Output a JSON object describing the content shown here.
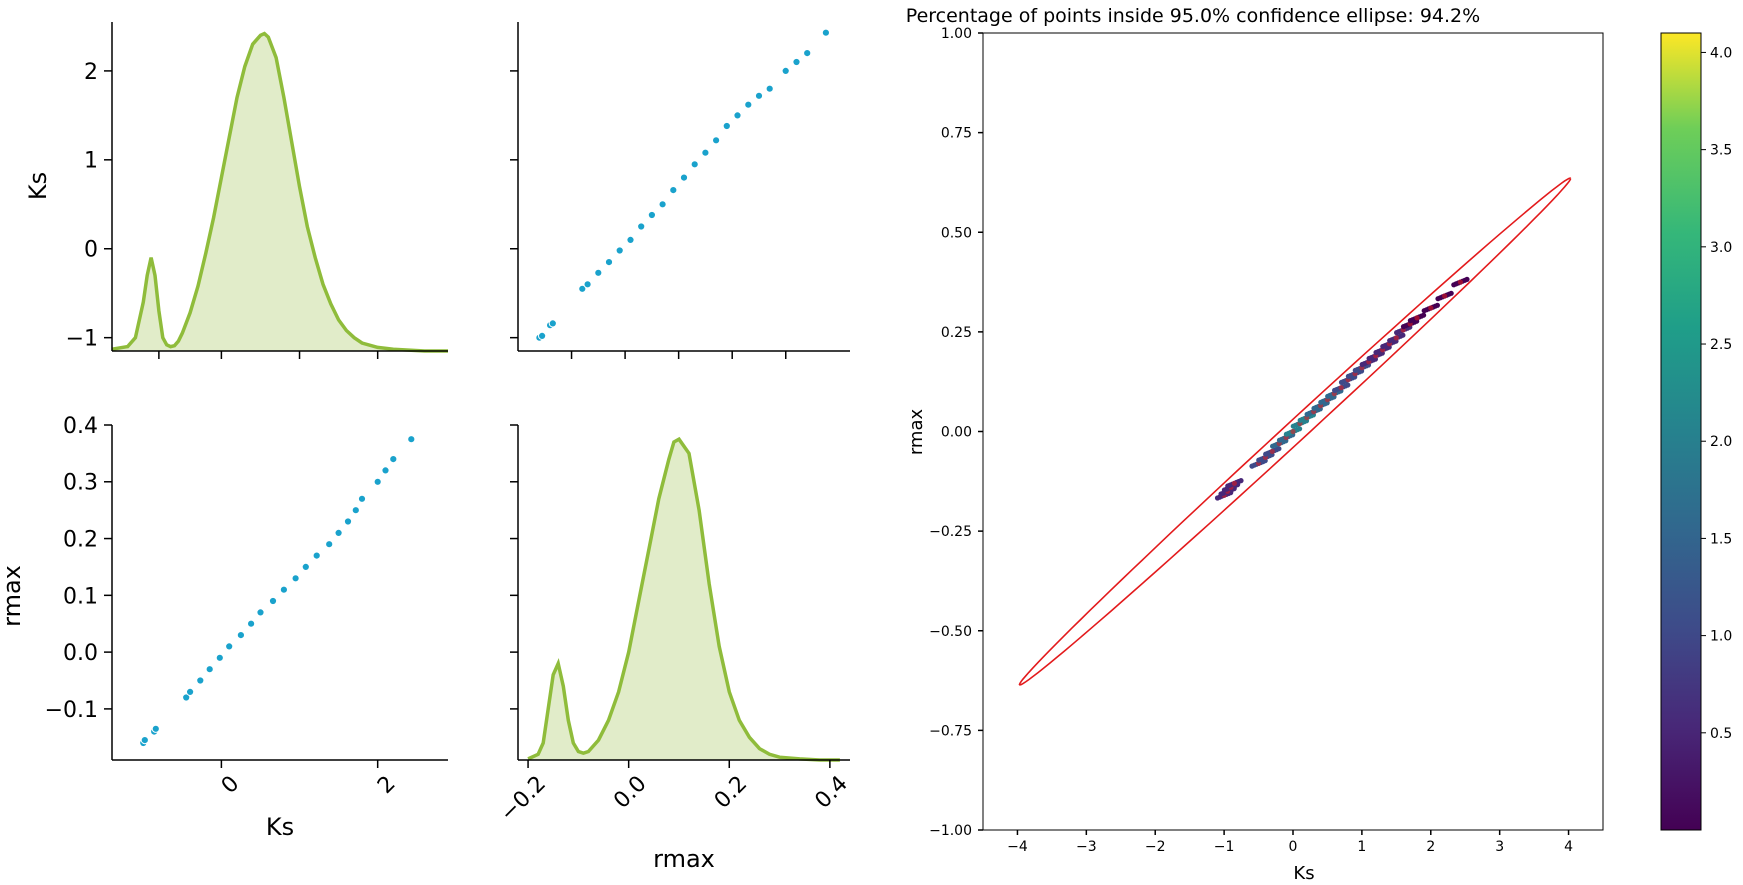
{
  "chart_data": [
    {
      "id": "kde_ks",
      "type": "area",
      "ylabel": "Ks",
      "yticks": [
        -1,
        0,
        1,
        2
      ],
      "ytick_labels": [
        "−1",
        "0",
        "1",
        "2"
      ],
      "ylim": [
        -1.15,
        2.55
      ],
      "x_tick_positions": [
        -0.8,
        0,
        1,
        2
      ],
      "xlim": [
        -1.4,
        2.9
      ],
      "density_x": [
        -1.4,
        -1.2,
        -1.1,
        -1.0,
        -0.95,
        -0.9,
        -0.85,
        -0.8,
        -0.75,
        -0.7,
        -0.65,
        -0.6,
        -0.55,
        -0.5,
        -0.4,
        -0.3,
        -0.2,
        -0.1,
        0,
        0.1,
        0.2,
        0.3,
        0.4,
        0.5,
        0.55,
        0.6,
        0.7,
        0.8,
        0.9,
        1.0,
        1.1,
        1.2,
        1.3,
        1.4,
        1.5,
        1.6,
        1.7,
        1.8,
        2.0,
        2.2,
        2.4,
        2.6,
        2.9
      ],
      "density_y": [
        -1.13,
        -1.1,
        -1.0,
        -0.6,
        -0.3,
        -0.1,
        -0.3,
        -0.7,
        -1.0,
        -1.08,
        -1.1,
        -1.09,
        -1.04,
        -0.95,
        -0.72,
        -0.42,
        -0.05,
        0.35,
        0.8,
        1.25,
        1.7,
        2.05,
        2.3,
        2.4,
        2.42,
        2.38,
        2.15,
        1.7,
        1.2,
        0.7,
        0.25,
        -0.1,
        -0.4,
        -0.62,
        -0.8,
        -0.92,
        -1.0,
        -1.06,
        -1.11,
        -1.13,
        -1.14,
        -1.15,
        -1.15
      ],
      "line_color": "#8fbc3b",
      "fill_color": "#e1ecc9"
    },
    {
      "id": "scatter_rmax_vs_ks_top",
      "type": "scatter",
      "x_tick_positions": [
        -0.1,
        0,
        0.1,
        0.2,
        0.3
      ],
      "y_tick_positions": [
        -1,
        0,
        1,
        2
      ],
      "xlim": [
        -0.2,
        0.42
      ],
      "ylim": [
        -1.15,
        2.55
      ],
      "points": [
        [
          -0.16,
          -1.0
        ],
        [
          -0.155,
          -0.98
        ],
        [
          -0.14,
          -0.86
        ],
        [
          -0.135,
          -0.84
        ],
        [
          -0.08,
          -0.45
        ],
        [
          -0.07,
          -0.4
        ],
        [
          -0.05,
          -0.27
        ],
        [
          -0.03,
          -0.15
        ],
        [
          -0.01,
          -0.02
        ],
        [
          0.01,
          0.1
        ],
        [
          0.03,
          0.25
        ],
        [
          0.05,
          0.38
        ],
        [
          0.07,
          0.5
        ],
        [
          0.09,
          0.66
        ],
        [
          0.11,
          0.8
        ],
        [
          0.13,
          0.95
        ],
        [
          0.15,
          1.08
        ],
        [
          0.17,
          1.22
        ],
        [
          0.19,
          1.38
        ],
        [
          0.21,
          1.5
        ],
        [
          0.23,
          1.62
        ],
        [
          0.25,
          1.72
        ],
        [
          0.27,
          1.8
        ],
        [
          0.3,
          2.0
        ],
        [
          0.32,
          2.1
        ],
        [
          0.34,
          2.2
        ],
        [
          0.375,
          2.43
        ]
      ],
      "marker_color": "#1aa2cc"
    },
    {
      "id": "scatter_ks_vs_rmax",
      "type": "scatter",
      "xlabel": "Ks",
      "ylabel": "rmax",
      "xticks": [
        0,
        2
      ],
      "xtick_labels": [
        "0",
        "2"
      ],
      "yticks": [
        -0.1,
        0.0,
        0.1,
        0.2,
        0.3,
        0.4
      ],
      "ytick_labels": [
        "−0.1",
        "0.0",
        "0.1",
        "0.2",
        "0.3",
        "0.4"
      ],
      "xlim": [
        -1.4,
        2.9
      ],
      "ylim": [
        -0.19,
        0.4
      ],
      "points": [
        [
          -1.0,
          -0.16
        ],
        [
          -0.98,
          -0.155
        ],
        [
          -0.86,
          -0.14
        ],
        [
          -0.84,
          -0.135
        ],
        [
          -0.45,
          -0.08
        ],
        [
          -0.4,
          -0.07
        ],
        [
          -0.27,
          -0.05
        ],
        [
          -0.15,
          -0.03
        ],
        [
          -0.02,
          -0.01
        ],
        [
          0.1,
          0.01
        ],
        [
          0.25,
          0.03
        ],
        [
          0.38,
          0.05
        ],
        [
          0.5,
          0.07
        ],
        [
          0.66,
          0.09
        ],
        [
          0.8,
          0.11
        ],
        [
          0.95,
          0.13
        ],
        [
          1.08,
          0.15
        ],
        [
          1.22,
          0.17
        ],
        [
          1.38,
          0.19
        ],
        [
          1.5,
          0.21
        ],
        [
          1.62,
          0.23
        ],
        [
          1.72,
          0.25
        ],
        [
          1.8,
          0.27
        ],
        [
          2.0,
          0.3
        ],
        [
          2.1,
          0.32
        ],
        [
          2.2,
          0.34
        ],
        [
          2.43,
          0.375
        ]
      ],
      "marker_color": "#1aa2cc"
    },
    {
      "id": "kde_rmax",
      "type": "area",
      "xlabel": "rmax",
      "xticks": [
        -0.2,
        0.0,
        0.2,
        0.4
      ],
      "xtick_labels": [
        "−0.2",
        "0.0",
        "0.2",
        "0.4"
      ],
      "y_tick_positions": [
        -0.1,
        0.0,
        0.1,
        0.2,
        0.3,
        0.4
      ],
      "xlim": [
        -0.22,
        0.44
      ],
      "ylim": [
        -0.19,
        0.4
      ],
      "density_x": [
        -0.2,
        -0.18,
        -0.17,
        -0.16,
        -0.15,
        -0.14,
        -0.13,
        -0.12,
        -0.11,
        -0.1,
        -0.09,
        -0.08,
        -0.06,
        -0.04,
        -0.02,
        0.0,
        0.02,
        0.04,
        0.06,
        0.08,
        0.09,
        0.1,
        0.12,
        0.14,
        0.16,
        0.18,
        0.2,
        0.22,
        0.24,
        0.26,
        0.28,
        0.3,
        0.34,
        0.38,
        0.42
      ],
      "density_y": [
        -0.188,
        -0.18,
        -0.16,
        -0.1,
        -0.04,
        -0.02,
        -0.06,
        -0.12,
        -0.16,
        -0.175,
        -0.178,
        -0.175,
        -0.155,
        -0.12,
        -0.07,
        0.0,
        0.09,
        0.18,
        0.27,
        0.34,
        0.37,
        0.375,
        0.35,
        0.25,
        0.12,
        0.01,
        -0.07,
        -0.12,
        -0.15,
        -0.17,
        -0.18,
        -0.185,
        -0.188,
        -0.19,
        -0.19
      ],
      "line_color": "#8fbc3b",
      "fill_color": "#e1ecc9"
    },
    {
      "id": "confidence_ellipse",
      "type": "scatter",
      "title": "Percentage of points inside 95.0% confidence ellipse: 94.2%",
      "xlabel": "Ks",
      "ylabel": "rmax",
      "xticks": [
        -4,
        -3,
        -2,
        -1,
        0,
        1,
        2,
        3,
        4
      ],
      "xtick_labels": [
        "−4",
        "−3",
        "−2",
        "−1",
        "0",
        "1",
        "2",
        "3",
        "4"
      ],
      "yticks": [
        -1.0,
        -0.75,
        -0.5,
        -0.25,
        0.0,
        0.25,
        0.5,
        0.75,
        1.0
      ],
      "ytick_labels": [
        "−1.00",
        "−0.75",
        "−0.50",
        "−0.25",
        "0.00",
        "0.25",
        "0.50",
        "0.75",
        "1.00"
      ],
      "xlim": [
        -4.5,
        4.5
      ],
      "ylim": [
        -1.0,
        1.0
      ],
      "ellipse": {
        "center": [
          0.03,
          0.0
        ],
        "semi_major_point": [
          4.03,
          0.635
        ],
        "semi_minor": 0.035,
        "color": "#e31a1c"
      },
      "points": [
        [
          -1.0,
          -0.16,
          0.4
        ],
        [
          -0.95,
          -0.15,
          0.5
        ],
        [
          -0.9,
          -0.14,
          0.6
        ],
        [
          -0.85,
          -0.13,
          0.4
        ],
        [
          -0.5,
          -0.08,
          0.8
        ],
        [
          -0.4,
          -0.065,
          1.0
        ],
        [
          -0.3,
          -0.05,
          1.2
        ],
        [
          -0.2,
          -0.03,
          1.4
        ],
        [
          -0.1,
          -0.015,
          1.6
        ],
        [
          0.0,
          0.0,
          1.8
        ],
        [
          0.1,
          0.02,
          1.9
        ],
        [
          0.2,
          0.035,
          1.8
        ],
        [
          0.3,
          0.05,
          1.7
        ],
        [
          0.4,
          0.065,
          1.6
        ],
        [
          0.5,
          0.08,
          1.5
        ],
        [
          0.6,
          0.095,
          1.3
        ],
        [
          0.7,
          0.11,
          1.2
        ],
        [
          0.8,
          0.13,
          1.0
        ],
        [
          0.9,
          0.145,
          0.9
        ],
        [
          1.0,
          0.16,
          0.8
        ],
        [
          1.1,
          0.175,
          0.7
        ],
        [
          1.2,
          0.19,
          0.6
        ],
        [
          1.3,
          0.205,
          0.5
        ],
        [
          1.4,
          0.22,
          0.4
        ],
        [
          1.5,
          0.235,
          0.35
        ],
        [
          1.6,
          0.255,
          0.3
        ],
        [
          1.7,
          0.27,
          0.25
        ],
        [
          1.8,
          0.285,
          0.2
        ],
        [
          2.0,
          0.31,
          0.15
        ],
        [
          2.2,
          0.34,
          0.1
        ],
        [
          2.43,
          0.375,
          0.05
        ]
      ],
      "marker_color": "#3b3482",
      "colorbar": {
        "ticks": [
          0.5,
          1.0,
          1.5,
          2.0,
          2.5,
          3.0,
          3.5,
          4.0
        ],
        "tick_labels": [
          "0.5",
          "1.0",
          "1.5",
          "2.0",
          "2.5",
          "3.0",
          "3.5",
          "4.0"
        ],
        "range": [
          0.0,
          4.1
        ],
        "colormap": "viridis"
      }
    }
  ]
}
